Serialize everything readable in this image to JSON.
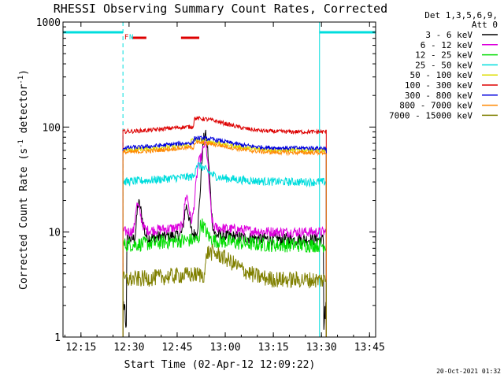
{
  "chart_data": {
    "type": "line",
    "title": "RHESSI Observing Summary Count Rates, Corrected",
    "xlabel": "Start Time (02-Apr-12 12:09:22)",
    "ylabel": "Corrected Count Rate (s",
    "ylabel_sup": "-1",
    "ylabel_tail": " detector",
    "ylabel_close": ")",
    "yscale": "log",
    "ylim": [
      1,
      1000
    ],
    "xlim_minutes": [
      0,
      97.5
    ],
    "xticks": [
      {
        "m": 5.6,
        "label": "12:15"
      },
      {
        "m": 20.6,
        "label": "12:30"
      },
      {
        "m": 35.6,
        "label": "12:45"
      },
      {
        "m": 50.6,
        "label": "13:00"
      },
      {
        "m": 65.6,
        "label": "13:15"
      },
      {
        "m": 80.6,
        "label": "13:30"
      },
      {
        "m": 95.6,
        "label": "13:45"
      }
    ],
    "yticks": [
      {
        "v": 1,
        "label": "1"
      },
      {
        "v": 10,
        "label": "10"
      },
      {
        "v": 100,
        "label": "100"
      },
      {
        "v": 1000,
        "label": "1000"
      }
    ],
    "legend": {
      "header1": "Det 1,3,5,6,9,",
      "header2": "Att 0",
      "placement": "right"
    },
    "series": [
      {
        "name": "3 - 6 keV",
        "color": "#000000",
        "base": 8.5,
        "peaks": [
          [
            23.5,
            10,
            0.6,
            1.4
          ],
          [
            38.5,
            8,
            0.9,
            1.0
          ],
          [
            44.3,
            75,
            1.2,
            1.3
          ]
        ],
        "noise": 0.06,
        "drop_start": true
      },
      {
        "name": "6 - 12 keV",
        "color": "#dd00dd",
        "base": 10,
        "peaks": [
          [
            23.0,
            8,
            0.55,
            1.5
          ],
          [
            38.5,
            11,
            0.8,
            1.0
          ],
          [
            42.5,
            32,
            1.3,
            1.1
          ],
          [
            44.3,
            55,
            1.1,
            1.2
          ]
        ],
        "noise": 0.05
      },
      {
        "name": "12 - 25 keV",
        "color": "#00dd00",
        "base": 7.5,
        "peaks": [
          [
            43.0,
            3.5,
            0.4,
            2.0
          ]
        ],
        "noise": 0.07
      },
      {
        "name": "25 - 50 keV",
        "color": "#00dddd",
        "base": 30,
        "peaks": [
          [
            41.5,
            10,
            0.35,
            4.0
          ]
        ],
        "noise": 0.04
      },
      {
        "name": "50 - 100 keV",
        "color": "#dddd00",
        "base": 60,
        "peaks": [
          [
            40.0,
            8,
            0.2,
            12
          ]
        ],
        "noise": 0.02
      },
      {
        "name": "100 - 300 keV",
        "color": "#dd0000",
        "base": 90,
        "peaks": [
          [
            41.0,
            20,
            0.25,
            12
          ]
        ],
        "noise": 0.02
      },
      {
        "name": "300 - 800 keV",
        "color": "#0000dd",
        "base": 63,
        "peaks": [
          [
            41.0,
            8,
            0.2,
            12
          ]
        ],
        "noise": 0.02
      },
      {
        "name": "800 - 7000 keV",
        "color": "#ff8800",
        "base": 57,
        "peaks": [
          [
            41.0,
            7,
            0.2,
            12
          ]
        ],
        "noise": 0.02
      },
      {
        "name": "7000 - 15000 keV",
        "color": "#808000",
        "base": 3.5,
        "peaks": [
          [
            45.0,
            2.5,
            0.5,
            10
          ]
        ],
        "noise": 0.08
      }
    ],
    "data_span_minutes": [
      18.7,
      82.1
    ],
    "night_intervals": [
      [
        0,
        18.7
      ],
      [
        80.0,
        97.5
      ]
    ],
    "markers": [
      {
        "label": "F",
        "m": 19.8,
        "color": "#dd0000"
      },
      {
        "label": "N",
        "m": 21.3,
        "color": "#00dddd"
      }
    ],
    "flare_bars_minutes": [
      [
        21.5,
        26.0
      ],
      [
        36.8,
        42.5
      ]
    ],
    "timestamp": "20-Oct-2021 01:32"
  }
}
